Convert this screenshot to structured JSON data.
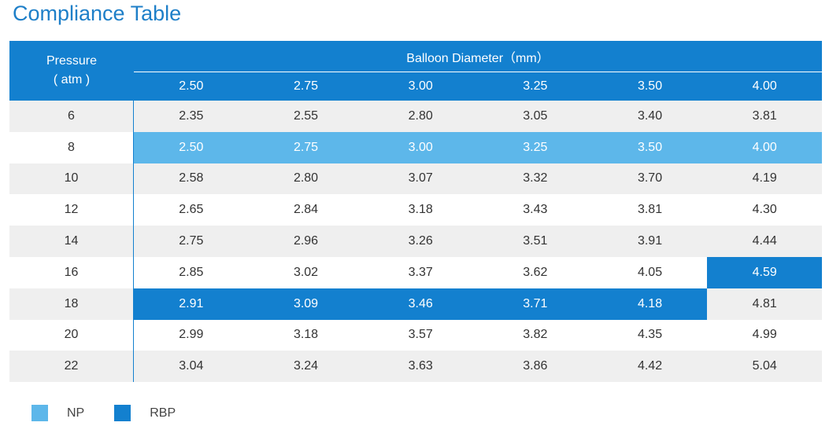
{
  "title": "Compliance Table",
  "header": {
    "pressure_line1": "Pressure",
    "pressure_line2": "( atm )",
    "diameter_title": "Balloon Diameter（mm）",
    "diameters": [
      "2.50",
      "2.75",
      "3.00",
      "3.25",
      "3.50",
      "4.00"
    ]
  },
  "rows": [
    {
      "pressure": "6",
      "values": [
        "2.35",
        "2.55",
        "2.80",
        "3.05",
        "3.40",
        "3.81"
      ]
    },
    {
      "pressure": "8",
      "values": [
        "2.50",
        "2.75",
        "3.00",
        "3.25",
        "3.50",
        "4.00"
      ]
    },
    {
      "pressure": "10",
      "values": [
        "2.58",
        "2.80",
        "3.07",
        "3.32",
        "3.70",
        "4.19"
      ]
    },
    {
      "pressure": "12",
      "values": [
        "2.65",
        "2.84",
        "3.18",
        "3.43",
        "3.81",
        "4.30"
      ]
    },
    {
      "pressure": "14",
      "values": [
        "2.75",
        "2.96",
        "3.26",
        "3.51",
        "3.91",
        "4.44"
      ]
    },
    {
      "pressure": "16",
      "values": [
        "2.85",
        "3.02",
        "3.37",
        "3.62",
        "4.05",
        "4.59"
      ]
    },
    {
      "pressure": "18",
      "values": [
        "2.91",
        "3.09",
        "3.46",
        "3.71",
        "4.18",
        "4.81"
      ]
    },
    {
      "pressure": "20",
      "values": [
        "2.99",
        "3.18",
        "3.57",
        "3.82",
        "4.35",
        "4.99"
      ]
    },
    {
      "pressure": "22",
      "values": [
        "3.04",
        "3.24",
        "3.63",
        "3.86",
        "4.42",
        "5.04"
      ]
    }
  ],
  "highlights": {
    "np": [
      [
        1,
        0
      ],
      [
        1,
        1
      ],
      [
        1,
        2
      ],
      [
        1,
        3
      ],
      [
        1,
        4
      ],
      [
        1,
        5
      ]
    ],
    "rbp": [
      [
        5,
        5
      ],
      [
        6,
        0
      ],
      [
        6,
        1
      ],
      [
        6,
        2
      ],
      [
        6,
        3
      ],
      [
        6,
        4
      ]
    ]
  },
  "legend": {
    "np_label": "NP",
    "rbp_label": "RBP"
  },
  "colors": {
    "np": "#5DB7EA",
    "rbp": "#1380CF",
    "header": "#1380CF",
    "title": "#1E7FC8"
  }
}
